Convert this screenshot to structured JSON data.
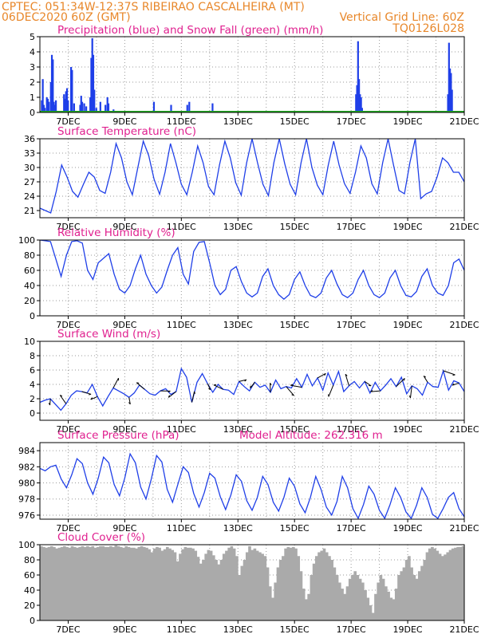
{
  "header": {
    "line1_left": "CPTEC:   051:34W-12:37S  RIBEIRAO CASCALHEIRA (MT)",
    "line2_left": "06DEC2020 60Z (GMT)",
    "line2_right": "Vertical Grid Line: 60Z",
    "line3_right": "TQ0126L028"
  },
  "colors": {
    "header": "#e8872a",
    "panel_title": "#e0208f",
    "precip": "#1f3fe8",
    "snow": "#22aa22",
    "line": "#1f3fe8",
    "cloud": "#aaaaaa"
  },
  "x_ticks": [
    "7DEC",
    "9DEC",
    "11DEC",
    "13DEC",
    "15DEC",
    "17DEC",
    "19DEC",
    "21DEC"
  ],
  "chart_data": [
    {
      "id": "precip",
      "type": "bar",
      "title": "Precipitation (blue) and Snow Fall (green) (mm/h)",
      "ylim": [
        0,
        5
      ],
      "yticks": [
        0,
        1,
        2,
        3,
        4,
        5
      ],
      "series": [
        {
          "name": "Precipitation",
          "x": [
            0.1,
            0.2,
            0.3,
            0.4,
            0.6,
            0.7,
            0.8,
            1.0,
            1.1,
            1.2,
            1.3,
            1.4,
            1.5,
            2.3,
            2.4,
            2.5,
            2.6,
            2.7,
            3.0,
            3.1,
            3.3,
            3.9,
            4.0,
            4.1,
            4.3,
            4.5,
            4.9,
            5.0,
            5.1,
            5.2,
            5.3,
            5.5,
            5.9,
            6.4,
            6.6,
            6.7,
            7.2,
            11.2,
            12.9,
            14.5,
            14.7,
            17.0,
            31.2,
            31.3,
            31.4,
            31.5,
            31.6,
            31.7,
            31.8,
            40.3,
            40.4,
            40.5,
            40.6,
            40.7
          ],
          "y": [
            0.8,
            2.2,
            0.5,
            0.3,
            1.0,
            0.9,
            0.7,
            2.0,
            3.8,
            3.5,
            0.7,
            0.5,
            0.8,
            1.2,
            0.9,
            1.4,
            1.6,
            0.8,
            3.0,
            2.8,
            0.6,
            0.5,
            1.1,
            0.7,
            0.6,
            0.4,
            1.0,
            3.6,
            4.9,
            3.8,
            1.5,
            0.3,
            0.7,
            0.5,
            1.0,
            0.6,
            0.2,
            0.7,
            0.5,
            0.5,
            0.7,
            0.6,
            1.2,
            1.8,
            4.7,
            2.2,
            1.2,
            1.0,
            0.3,
            1.2,
            4.6,
            2.9,
            2.6,
            1.5
          ]
        },
        {
          "name": "Snow Fall",
          "x": [
            0,
            42
          ],
          "y": [
            0,
            0
          ]
        }
      ]
    },
    {
      "id": "temp",
      "type": "line",
      "title": "Surface Temperature (nC)",
      "ylim": [
        19.5,
        36
      ],
      "yticks": [
        21,
        24,
        27,
        30,
        33,
        36
      ],
      "series": [
        {
          "name": "",
          "values": [
            21.5,
            21,
            20.5,
            25,
            30.5,
            28,
            25,
            23.8,
            26.5,
            29,
            28,
            25.2,
            24.6,
            29,
            35,
            32,
            27,
            24.3,
            30,
            35.5,
            32.5,
            27.5,
            24.4,
            29,
            35,
            31,
            26.5,
            24.3,
            29,
            34.5,
            31,
            26,
            24.3,
            30.5,
            35.5,
            32,
            26.8,
            24.2,
            31,
            36,
            31,
            26.5,
            24.1,
            31,
            36,
            30.8,
            26.5,
            24.3,
            31,
            36,
            30,
            26.3,
            24.3,
            30.5,
            35.5,
            30.5,
            26.6,
            24.6,
            29,
            34.5,
            32,
            26.6,
            24.5,
            31,
            36,
            30.5,
            25.2,
            24.5,
            31,
            36,
            23.5,
            24.5,
            25,
            28,
            32,
            31,
            29,
            29,
            27
          ]
        }
      ]
    },
    {
      "id": "rh",
      "type": "line",
      "title": "Relative Humidity (%)",
      "ylim": [
        0,
        100
      ],
      "yticks": [
        0,
        20,
        40,
        60,
        80,
        100
      ],
      "series": [
        {
          "name": "",
          "values": [
            100,
            99,
            98,
            75,
            52,
            80,
            98,
            99,
            96,
            60,
            48,
            70,
            76,
            82,
            55,
            35,
            30,
            40,
            62,
            80,
            55,
            40,
            30,
            38,
            60,
            80,
            90,
            55,
            42,
            85,
            97,
            98,
            70,
            40,
            28,
            35,
            60,
            65,
            45,
            30,
            25,
            30,
            52,
            62,
            40,
            28,
            22,
            28,
            48,
            58,
            40,
            27,
            24,
            30,
            50,
            60,
            42,
            28,
            24,
            30,
            48,
            60,
            40,
            28,
            24,
            30,
            50,
            60,
            40,
            27,
            25,
            32,
            52,
            62,
            40,
            30,
            27,
            40,
            70,
            75,
            60
          ]
        }
      ]
    },
    {
      "id": "wind",
      "type": "line",
      "title": "Surface Wind (m/s)",
      "ylim": [
        -1,
        10
      ],
      "yticks": [
        0,
        2,
        4,
        6,
        8,
        10
      ],
      "series": [
        {
          "name": "Speed",
          "values": [
            1.5,
            1.8,
            2.0,
            1.2,
            0.4,
            1.3,
            2.5,
            3.1,
            3.0,
            2.8,
            4.0,
            2.3,
            1.0,
            2.3,
            3.5,
            3.1,
            2.7,
            2.2,
            2.8,
            3.9,
            3.3,
            2.7,
            2.5,
            3.1,
            3.4,
            2.6,
            3.0,
            6.2,
            5.0,
            1.5,
            4.3,
            5.5,
            4.1,
            2.9,
            4.0,
            3.3,
            3.2,
            2.6,
            4.4,
            3.7,
            3.1,
            4.3,
            3.6,
            3.9,
            2.9,
            4.6,
            3.4,
            3.7,
            3.5,
            4.8,
            3.6,
            5.4,
            3.8,
            4.9,
            3.2,
            5.6,
            3.9,
            5.8,
            3.0,
            3.8,
            4.4,
            3.5,
            4.4,
            2.8,
            4.3,
            3.1,
            3.9,
            4.8,
            3.7,
            5.0,
            2.7,
            3.8,
            3.4,
            2.5,
            4.3,
            3.7,
            3.6,
            5.9,
            3.2,
            4.5,
            4.2,
            3.0
          ]
        }
      ]
    },
    {
      "id": "pres",
      "type": "line",
      "title": "Surface Pressure (hPa)",
      "annotation": "Model Altitude: 262.316 m",
      "ylim": [
        975.5,
        985
      ],
      "yticks": [
        976,
        978,
        980,
        982,
        984
      ],
      "series": [
        {
          "name": "",
          "values": [
            981.8,
            981.5,
            982,
            982.2,
            980.5,
            979.4,
            981,
            983,
            982.4,
            980,
            978.6,
            980.6,
            983.2,
            982.5,
            979.8,
            978.4,
            980.6,
            983.6,
            982.5,
            979.5,
            978,
            980.5,
            983.4,
            982.6,
            979.2,
            977.6,
            979.8,
            982,
            981.3,
            978.7,
            977,
            978.8,
            981.2,
            980.6,
            978.3,
            976.7,
            978.5,
            981,
            980.2,
            977.8,
            976.6,
            978.2,
            980.8,
            979.8,
            977.6,
            976.5,
            978.2,
            980.6,
            979.6,
            977.4,
            976.3,
            978.2,
            980.8,
            979.2,
            977,
            976,
            977.7,
            980.8,
            979.4,
            976.8,
            975.6,
            977.3,
            979.6,
            978.6,
            976.6,
            975.6,
            977.3,
            979.4,
            978.2,
            976.4,
            975.6,
            977.2,
            979.4,
            978.2,
            976.1,
            975.6,
            976.8,
            978.2,
            978.8,
            976.8,
            975.8
          ]
        }
      ]
    },
    {
      "id": "cloud",
      "type": "area",
      "title": "Cloud Cover (%)",
      "ylim": [
        0,
        100
      ],
      "yticks": [
        0,
        20,
        40,
        60,
        80,
        100
      ],
      "series": [
        {
          "name": "",
          "values": [
            98,
            97,
            96,
            97,
            98,
            97,
            95,
            96,
            97,
            98,
            97,
            96,
            98,
            97,
            96,
            97,
            98,
            97,
            98,
            97,
            98,
            96,
            97,
            98,
            98,
            97,
            97,
            98,
            97,
            99,
            98,
            97,
            96,
            98,
            97,
            96,
            96,
            95,
            97,
            98,
            97,
            96,
            94,
            90,
            95,
            97,
            96,
            92,
            94,
            97,
            95,
            93,
            90,
            78,
            88,
            94,
            97,
            96,
            96,
            95,
            92,
            84,
            75,
            80,
            88,
            93,
            92,
            86,
            80,
            74,
            80,
            88,
            92,
            96,
            98,
            95,
            85,
            60,
            72,
            80,
            90,
            98,
            93,
            95,
            92,
            90,
            88,
            85,
            70,
            45,
            30,
            50,
            70,
            80,
            85,
            95,
            97,
            96,
            97,
            95,
            85,
            65,
            42,
            28,
            35,
            60,
            75,
            85,
            90,
            92,
            95,
            90,
            85,
            80,
            70,
            60,
            50,
            42,
            35,
            45,
            55,
            60,
            65,
            60,
            55,
            50,
            40,
            30,
            20,
            10,
            35,
            50,
            60,
            55,
            45,
            38,
            30,
            28,
            42,
            60,
            65,
            70,
            80,
            85,
            70,
            60,
            55,
            65,
            72,
            80,
            90,
            95,
            97,
            95,
            92,
            88,
            85,
            87,
            90,
            93,
            95,
            96,
            97,
            97,
            98
          ]
        }
      ]
    }
  ]
}
